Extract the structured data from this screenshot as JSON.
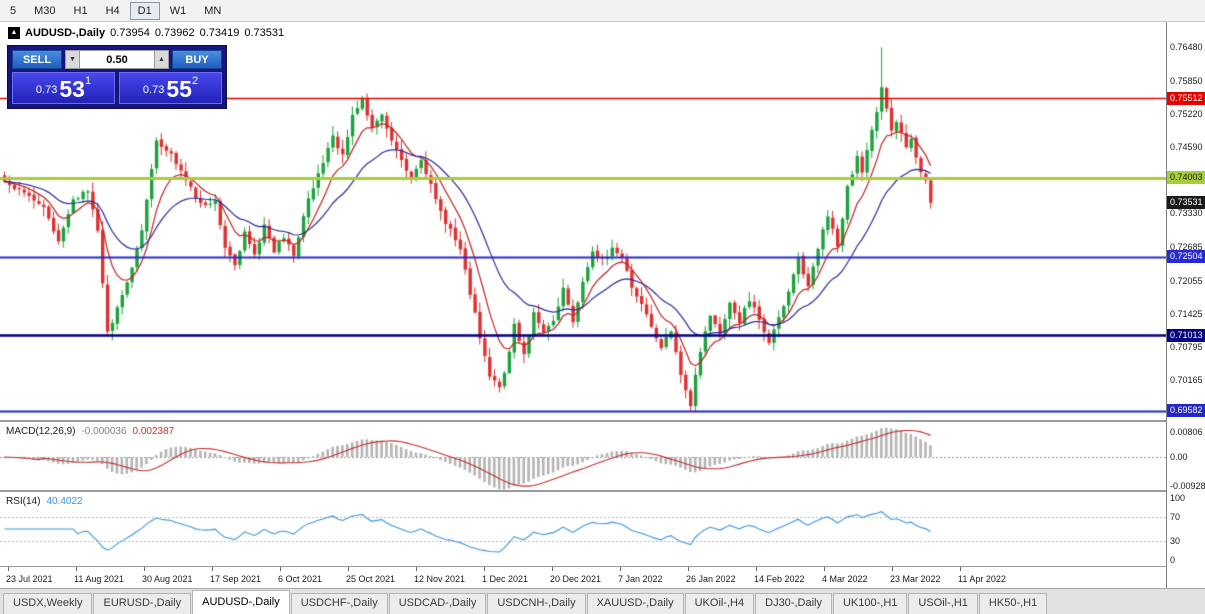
{
  "toolbar": {
    "timeframes": [
      {
        "label": "5",
        "active": false
      },
      {
        "label": "M30",
        "active": false
      },
      {
        "label": "H1",
        "active": false
      },
      {
        "label": "H4",
        "active": false
      },
      {
        "label": "D1",
        "active": true
      },
      {
        "label": "W1",
        "active": false
      },
      {
        "label": "MN",
        "active": false
      }
    ]
  },
  "icons": {
    "symbol_marker": "▲",
    "volume_down": "▼",
    "volume_up": "▲"
  },
  "quote_header": {
    "symbol": "AUDUSD-,Daily",
    "open": "0.73954",
    "high": "0.73962",
    "low": "0.73419",
    "close": "0.73531"
  },
  "trade_panel": {
    "sell_label": "SELL",
    "buy_label": "BUY",
    "volume": "0.50",
    "bid": {
      "small": "0.73",
      "big": "53",
      "sup": "1"
    },
    "ask": {
      "small": "0.73",
      "big": "55",
      "sup": "2"
    }
  },
  "price_axis": {
    "plain_labels": [
      "0.76480",
      "0.75850",
      "0.75220",
      "0.74590",
      "0.73330",
      "0.72685",
      "0.72055",
      "0.71425",
      "0.70795",
      "0.70165"
    ],
    "badges": [
      {
        "text": "0.75512",
        "bg": "#e60000",
        "fg": "#ffffff",
        "line_width": 1.4
      },
      {
        "text": "0.74003",
        "bg": "#a6ce39",
        "fg": "#1a1a1a",
        "line_width": 3
      },
      {
        "text": "0.73531",
        "bg": "#1a1a1a",
        "fg": "#ffffff",
        "line_width": 0
      },
      {
        "text": "0.72504",
        "bg": "#2728d6",
        "fg": "#ffffff",
        "line_width": 2
      },
      {
        "text": "0.71013",
        "bg": "#000080",
        "fg": "#ffffff",
        "line_width": 2.6
      },
      {
        "text": "0.69582",
        "bg": "#2326c8",
        "fg": "#ffffff",
        "line_width": 2
      }
    ]
  },
  "chart_data": {
    "type": "candlestick",
    "title": "AUDUSD-,Daily",
    "bars": 190,
    "ylim": [
      0.6941,
      0.7696
    ],
    "up_color": "#1ca23c",
    "down_color": "#df3030",
    "ma_fast_color": "#c22222",
    "ma_slow_color": "#2a2a9e",
    "close_anchors": [
      [
        0,
        0.7392
      ],
      [
        4,
        0.737
      ],
      [
        8,
        0.734
      ],
      [
        11,
        0.7282
      ],
      [
        14,
        0.736
      ],
      [
        17,
        0.7378
      ],
      [
        19,
        0.73
      ],
      [
        21,
        0.7107
      ],
      [
        23,
        0.715
      ],
      [
        26,
        0.723
      ],
      [
        28,
        0.73
      ],
      [
        31,
        0.747
      ],
      [
        34,
        0.7445
      ],
      [
        37,
        0.74
      ],
      [
        40,
        0.7348
      ],
      [
        43,
        0.736
      ],
      [
        45,
        0.7268
      ],
      [
        47,
        0.7232
      ],
      [
        49,
        0.73
      ],
      [
        51,
        0.7255
      ],
      [
        53,
        0.7308
      ],
      [
        55,
        0.7262
      ],
      [
        57,
        0.729
      ],
      [
        59,
        0.725
      ],
      [
        61,
        0.733
      ],
      [
        63,
        0.7385
      ],
      [
        65,
        0.743
      ],
      [
        67,
        0.7478
      ],
      [
        69,
        0.7442
      ],
      [
        71,
        0.7515
      ],
      [
        73,
        0.755
      ],
      [
        75,
        0.7495
      ],
      [
        77,
        0.7522
      ],
      [
        79,
        0.747
      ],
      [
        81,
        0.7432
      ],
      [
        83,
        0.7398
      ],
      [
        85,
        0.7432
      ],
      [
        87,
        0.739
      ],
      [
        89,
        0.7335
      ],
      [
        91,
        0.73
      ],
      [
        93,
        0.7268
      ],
      [
        95,
        0.718
      ],
      [
        97,
        0.71
      ],
      [
        99,
        0.7028
      ],
      [
        101,
        0.7
      ],
      [
        103,
        0.7068
      ],
      [
        104,
        0.7128
      ],
      [
        106,
        0.7062
      ],
      [
        108,
        0.7145
      ],
      [
        110,
        0.7108
      ],
      [
        112,
        0.7128
      ],
      [
        114,
        0.7188
      ],
      [
        116,
        0.7125
      ],
      [
        118,
        0.7205
      ],
      [
        120,
        0.7262
      ],
      [
        122,
        0.7242
      ],
      [
        124,
        0.7268
      ],
      [
        126,
        0.725
      ],
      [
        128,
        0.719
      ],
      [
        130,
        0.7158
      ],
      [
        132,
        0.7118
      ],
      [
        134,
        0.708
      ],
      [
        136,
        0.7108
      ],
      [
        138,
        0.7028
      ],
      [
        140,
        0.6972
      ],
      [
        142,
        0.7075
      ],
      [
        144,
        0.7138
      ],
      [
        146,
        0.7102
      ],
      [
        148,
        0.7162
      ],
      [
        150,
        0.7128
      ],
      [
        152,
        0.717
      ],
      [
        154,
        0.713
      ],
      [
        156,
        0.7085
      ],
      [
        158,
        0.7135
      ],
      [
        160,
        0.7182
      ],
      [
        162,
        0.7248
      ],
      [
        164,
        0.7195
      ],
      [
        166,
        0.7268
      ],
      [
        168,
        0.7332
      ],
      [
        170,
        0.727
      ],
      [
        172,
        0.7382
      ],
      [
        174,
        0.7438
      ],
      [
        175,
        0.7408
      ],
      [
        176,
        0.7452
      ],
      [
        177,
        0.749
      ],
      [
        178,
        0.7522
      ],
      [
        179,
        0.7575
      ],
      [
        180,
        0.7528
      ],
      [
        181,
        0.7492
      ],
      [
        182,
        0.751
      ],
      [
        183,
        0.7482
      ],
      [
        184,
        0.746
      ],
      [
        185,
        0.7478
      ],
      [
        186,
        0.7442
      ],
      [
        187,
        0.741
      ],
      [
        188,
        0.7398
      ],
      [
        189,
        0.7353
      ]
    ],
    "forced_extremes": [
      {
        "i": 73,
        "high": 0.7556
      },
      {
        "i": 101,
        "low": 0.6993
      },
      {
        "i": 140,
        "low": 0.69582
      },
      {
        "i": 179,
        "high": 0.7648
      }
    ],
    "ohlc_last": {
      "open": 0.73954,
      "high": 0.73962,
      "low": 0.73419,
      "close": 0.73531
    },
    "x_labels": [
      "23 Jul 2021",
      "11 Aug 2021",
      "30 Aug 2021",
      "17 Sep 2021",
      "6 Oct 2021",
      "25 Oct 2021",
      "12 Nov 2021",
      "1 Dec 2021",
      "20 Dec 2021",
      "7 Jan 2022",
      "26 Jan 2022",
      "14 Feb 2022",
      "4 Mar 2022",
      "23 Mar 2022",
      "11 Apr 2022"
    ],
    "indicators": {
      "macd": {
        "name": "MACD(12,26,9)",
        "value_main": "-0.000036",
        "value_signal": "0.002387",
        "ylim": [
          -0.0106,
          0.0113
        ],
        "axis_labels": [
          "0.00806",
          "0.00",
          "-0.00928"
        ],
        "hist_color": "#b4b4b4",
        "signal_color": "#c03030"
      },
      "rsi": {
        "name": "RSI(14)",
        "value": "40.4022",
        "ylim": [
          -10,
          110
        ],
        "levels": [
          70,
          30
        ],
        "axis_labels": [
          "100",
          "70",
          "30",
          "0"
        ],
        "line_color": "#3a96dd"
      }
    }
  },
  "tab_bar": {
    "tabs": [
      "USDX,Weekly",
      "EURUSD-,Daily",
      "AUDUSD-,Daily",
      "USDCHF-,Daily",
      "USDCAD-,Daily",
      "USDCNH-,Daily",
      "XAUUSD-,Daily",
      "UKOil-,H4",
      "DJ30-,Daily",
      "UK100-,H1",
      "USOil-,H1",
      "HK50-,H1"
    ],
    "active": "AUDUSD-,Daily"
  }
}
